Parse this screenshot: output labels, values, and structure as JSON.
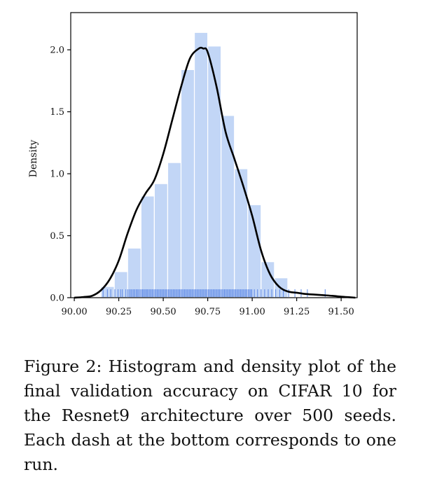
{
  "caption": "Figure 2: Histogram and density plot of the final validation accuracy on CIFAR 10 for the Resnet9 architecture over 500 seeds. Each dash at the bottom corresponds to one run.",
  "colors": {
    "bar_fill": "#c2d6f6",
    "bar_edge": "#ffffff",
    "kde_line": "#000000",
    "rug": "#5a86e6",
    "axis": "#000000"
  },
  "chart_data": {
    "type": "bar",
    "title": "",
    "xlabel": "",
    "ylabel": "Density",
    "xlim": [
      89.98,
      91.59
    ],
    "ylim": [
      0.0,
      2.3
    ],
    "xticks": [
      90.0,
      90.25,
      90.5,
      90.75,
      91.0,
      91.25,
      91.5
    ],
    "xtick_labels": [
      "90.00",
      "90.25",
      "90.50",
      "90.75",
      "91.00",
      "91.25",
      "91.50"
    ],
    "yticks": [
      0.0,
      0.5,
      1.0,
      1.5,
      2.0
    ],
    "ytick_labels": [
      "0.0",
      "0.5",
      "1.0",
      "1.5",
      "2.0"
    ],
    "histogram": {
      "bin_edges": [
        90.15,
        90.225,
        90.3,
        90.375,
        90.45,
        90.525,
        90.6,
        90.675,
        90.75,
        90.825,
        90.9,
        90.975,
        91.05,
        91.125,
        91.2
      ],
      "densities": [
        0.09,
        0.21,
        0.4,
        0.82,
        0.92,
        1.09,
        1.84,
        2.14,
        2.03,
        1.47,
        1.04,
        0.75,
        0.29,
        0.16
      ]
    },
    "kde": {
      "x": [
        90.0,
        90.05,
        90.1,
        90.15,
        90.2,
        90.25,
        90.3,
        90.35,
        90.4,
        90.45,
        90.5,
        90.55,
        90.6,
        90.65,
        90.7,
        90.725,
        90.75,
        90.8,
        90.85,
        90.9,
        90.95,
        91.0,
        91.05,
        91.1,
        91.15,
        91.2,
        91.25,
        91.3,
        91.35,
        91.4,
        91.45,
        91.5,
        91.55,
        91.58
      ],
      "y": [
        0.0,
        0.005,
        0.015,
        0.06,
        0.15,
        0.3,
        0.52,
        0.71,
        0.84,
        0.95,
        1.16,
        1.43,
        1.7,
        1.93,
        2.01,
        2.01,
        1.98,
        1.7,
        1.34,
        1.12,
        0.9,
        0.66,
        0.38,
        0.19,
        0.09,
        0.05,
        0.04,
        0.03,
        0.025,
        0.02,
        0.015,
        0.008,
        0.003,
        0.0
      ]
    },
    "rug": [
      90.162,
      90.186,
      90.205,
      90.228,
      90.246,
      90.26,
      90.27,
      90.29,
      90.301,
      90.31,
      90.318,
      90.325,
      90.333,
      90.34,
      90.348,
      90.355,
      90.362,
      90.37,
      90.377,
      90.384,
      90.39,
      90.397,
      90.404,
      90.41,
      90.417,
      90.424,
      90.431,
      90.438,
      90.445,
      90.452,
      90.459,
      90.466,
      90.473,
      90.48,
      90.487,
      90.494,
      90.501,
      90.508,
      90.515,
      90.522,
      90.529,
      90.536,
      90.543,
      90.55,
      90.557,
      90.564,
      90.571,
      90.578,
      90.585,
      90.592,
      90.599,
      90.606,
      90.613,
      90.62,
      90.627,
      90.634,
      90.641,
      90.648,
      90.655,
      90.662,
      90.669,
      90.676,
      90.683,
      90.69,
      90.697,
      90.704,
      90.711,
      90.718,
      90.725,
      90.732,
      90.739,
      90.746,
      90.753,
      90.76,
      90.767,
      90.774,
      90.781,
      90.788,
      90.795,
      90.802,
      90.809,
      90.816,
      90.823,
      90.83,
      90.837,
      90.844,
      90.851,
      90.858,
      90.865,
      90.872,
      90.879,
      90.886,
      90.893,
      90.9,
      90.907,
      90.914,
      90.921,
      90.928,
      90.935,
      90.942,
      90.949,
      90.956,
      90.963,
      90.97,
      90.977,
      90.984,
      90.991,
      90.998,
      91.012,
      91.03,
      91.05,
      91.07,
      91.09,
      91.11,
      91.132,
      91.155,
      91.175,
      91.205,
      91.24,
      91.275,
      91.31,
      91.41
    ]
  }
}
